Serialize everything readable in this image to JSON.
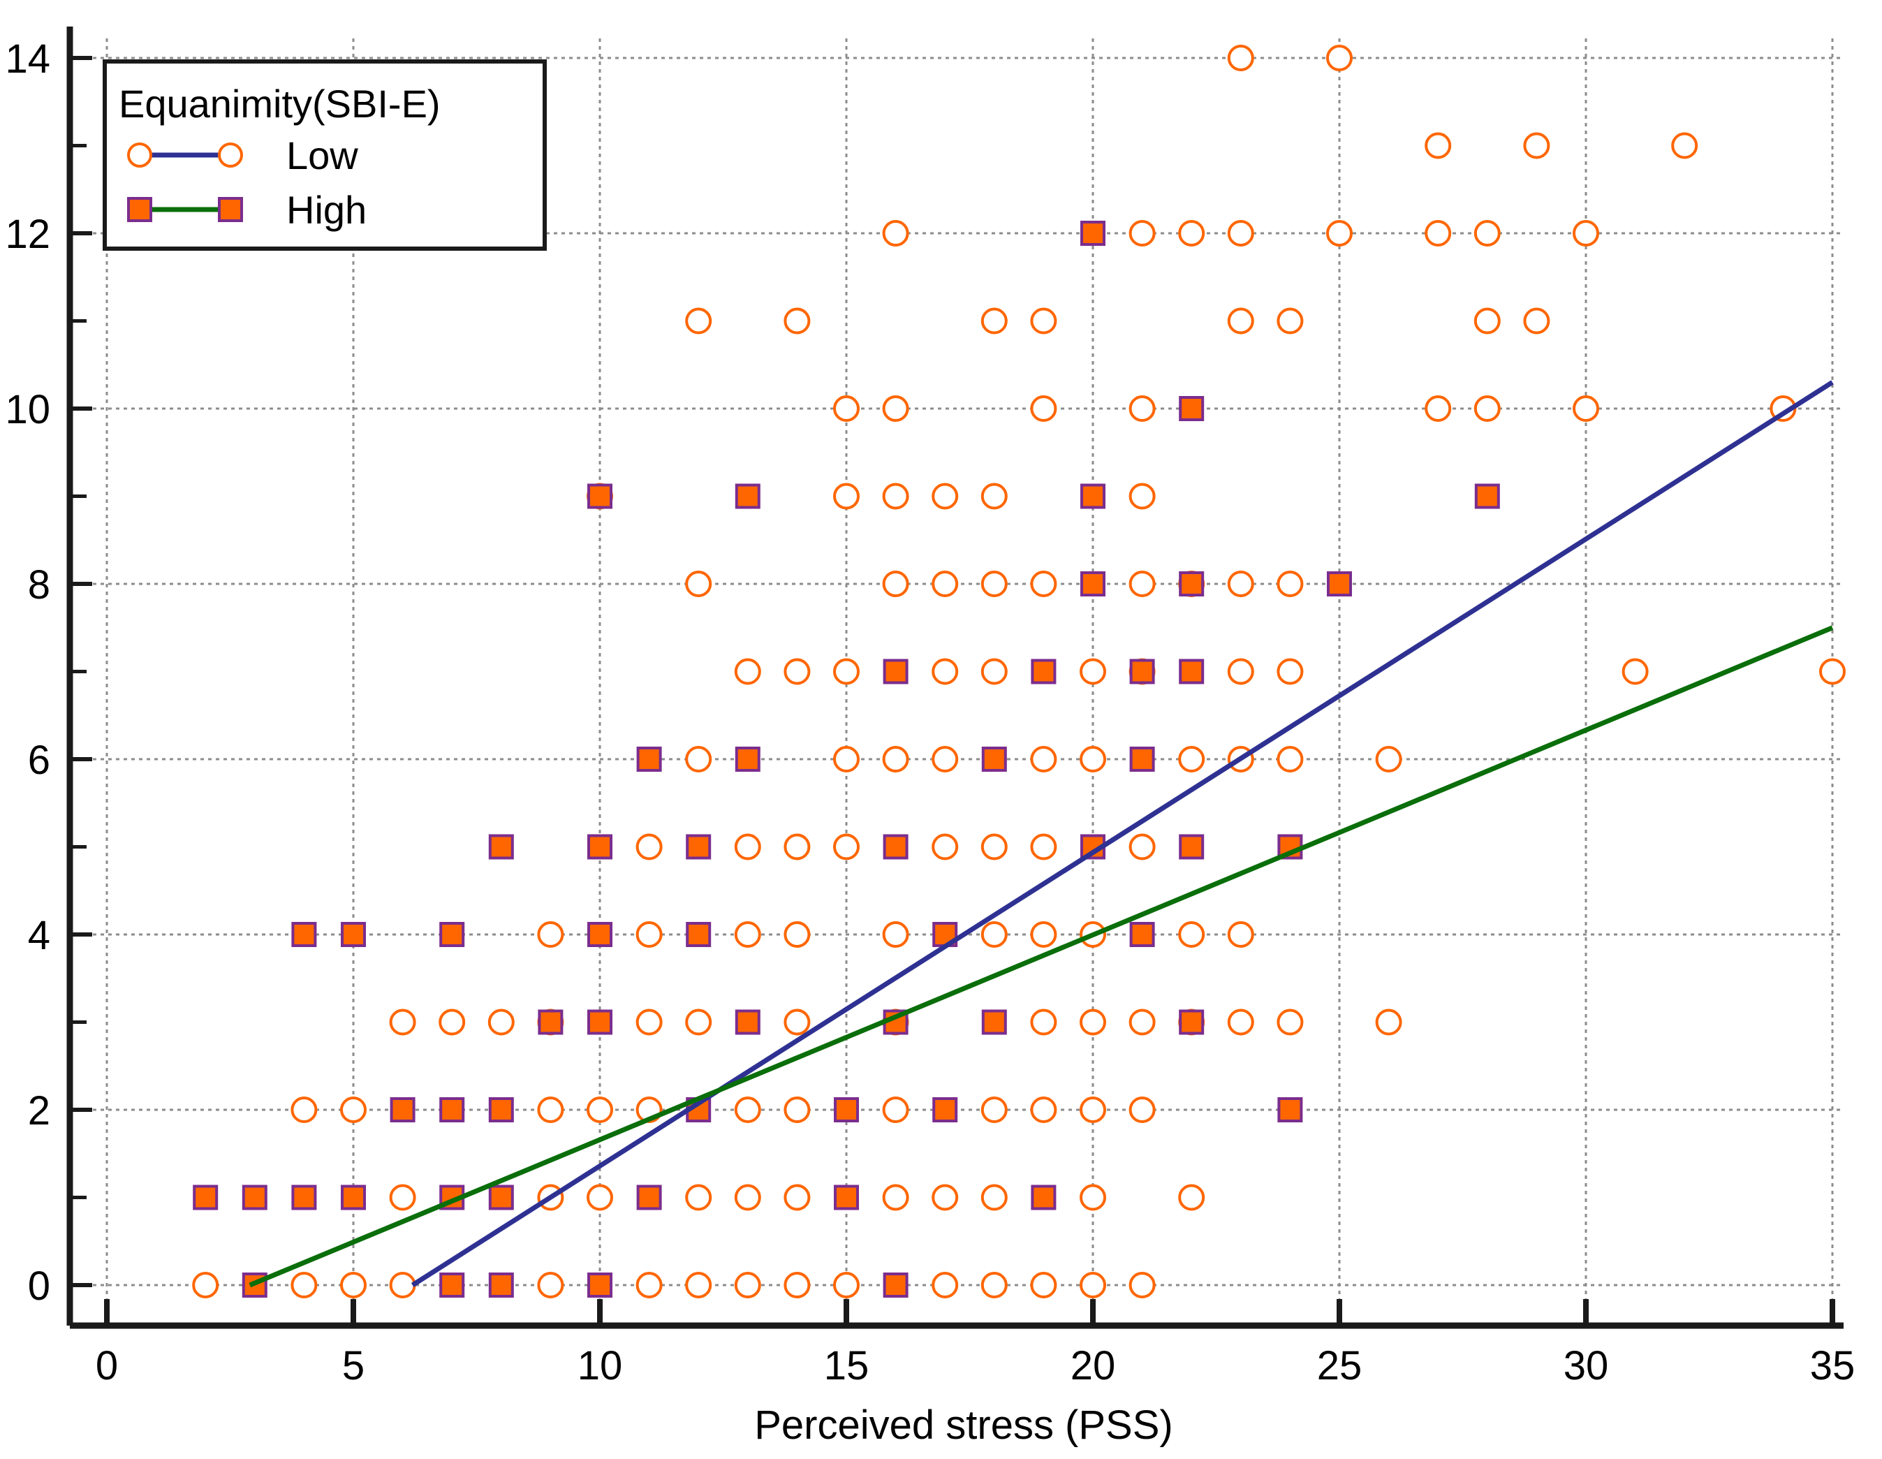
{
  "chart_data": {
    "type": "scatter",
    "title": "",
    "xlabel": "Perceived stress (PSS)",
    "ylabel": "",
    "xlim": [
      -0.5,
      35.2
    ],
    "ylim": [
      -0.45,
      14.3
    ],
    "xticks": [
      0,
      5,
      10,
      15,
      20,
      25,
      30,
      35
    ],
    "xtick_labels": [
      "0",
      "5",
      "10",
      "15",
      "20",
      "25",
      "30",
      "35"
    ],
    "yticks": [
      0,
      2,
      4,
      6,
      8,
      10,
      12,
      14
    ],
    "ytick_labels": [
      "0",
      "2",
      "4",
      "6",
      "8",
      "10",
      "12",
      "14"
    ],
    "grid": true,
    "legend": {
      "title": "Equanimity(SBI-E)",
      "position": "top-left",
      "entries": [
        "Low",
        "High"
      ]
    },
    "colors": {
      "marker_orange": "#ff6600",
      "square_edge": "#7b2d8e",
      "low_line": "#2e3192",
      "high_line": "#0a6e0a",
      "grid": "#8c8c8c",
      "axis": "#1a1a1a"
    },
    "series": [
      {
        "name": "Low",
        "marker": "circle",
        "fit_line": {
          "x": [
            6.2,
            35
          ],
          "y": [
            0,
            10.3
          ]
        },
        "points": [
          [
            23,
            14
          ],
          [
            25,
            14
          ],
          [
            27,
            13
          ],
          [
            29,
            13
          ],
          [
            32,
            13
          ],
          [
            16,
            12
          ],
          [
            21,
            12
          ],
          [
            22,
            12
          ],
          [
            23,
            12
          ],
          [
            25,
            12
          ],
          [
            27,
            12
          ],
          [
            28,
            12
          ],
          [
            30,
            12
          ],
          [
            12,
            11
          ],
          [
            14,
            11
          ],
          [
            18,
            11
          ],
          [
            19,
            11
          ],
          [
            23,
            11
          ],
          [
            24,
            11
          ],
          [
            28,
            11
          ],
          [
            29,
            11
          ],
          [
            15,
            10
          ],
          [
            16,
            10
          ],
          [
            19,
            10
          ],
          [
            21,
            10
          ],
          [
            27,
            10
          ],
          [
            28,
            10
          ],
          [
            30,
            10
          ],
          [
            34,
            10
          ],
          [
            10,
            9
          ],
          [
            15,
            9
          ],
          [
            16,
            9
          ],
          [
            17,
            9
          ],
          [
            18,
            9
          ],
          [
            21,
            9
          ],
          [
            12,
            8
          ],
          [
            16,
            8
          ],
          [
            17,
            8
          ],
          [
            18,
            8
          ],
          [
            19,
            8
          ],
          [
            21,
            8
          ],
          [
            22,
            8
          ],
          [
            23,
            8
          ],
          [
            24,
            8
          ],
          [
            13,
            7
          ],
          [
            14,
            7
          ],
          [
            15,
            7
          ],
          [
            17,
            7
          ],
          [
            18,
            7
          ],
          [
            20,
            7
          ],
          [
            21,
            7
          ],
          [
            23,
            7
          ],
          [
            24,
            7
          ],
          [
            31,
            7
          ],
          [
            35,
            7
          ],
          [
            12,
            6
          ],
          [
            15,
            6
          ],
          [
            16,
            6
          ],
          [
            17,
            6
          ],
          [
            19,
            6
          ],
          [
            20,
            6
          ],
          [
            22,
            6
          ],
          [
            23,
            6
          ],
          [
            24,
            6
          ],
          [
            26,
            6
          ],
          [
            11,
            5
          ],
          [
            13,
            5
          ],
          [
            14,
            5
          ],
          [
            15,
            5
          ],
          [
            17,
            5
          ],
          [
            18,
            5
          ],
          [
            19,
            5
          ],
          [
            21,
            5
          ],
          [
            9,
            4
          ],
          [
            11,
            4
          ],
          [
            13,
            4
          ],
          [
            14,
            4
          ],
          [
            16,
            4
          ],
          [
            18,
            4
          ],
          [
            19,
            4
          ],
          [
            20,
            4
          ],
          [
            22,
            4
          ],
          [
            23,
            4
          ],
          [
            6,
            3
          ],
          [
            7,
            3
          ],
          [
            8,
            3
          ],
          [
            9,
            3
          ],
          [
            11,
            3
          ],
          [
            12,
            3
          ],
          [
            14,
            3
          ],
          [
            16,
            3
          ],
          [
            19,
            3
          ],
          [
            20,
            3
          ],
          [
            21,
            3
          ],
          [
            22,
            3
          ],
          [
            23,
            3
          ],
          [
            24,
            3
          ],
          [
            26,
            3
          ],
          [
            4,
            2
          ],
          [
            5,
            2
          ],
          [
            9,
            2
          ],
          [
            10,
            2
          ],
          [
            11,
            2
          ],
          [
            13,
            2
          ],
          [
            14,
            2
          ],
          [
            16,
            2
          ],
          [
            18,
            2
          ],
          [
            19,
            2
          ],
          [
            20,
            2
          ],
          [
            21,
            2
          ],
          [
            6,
            1
          ],
          [
            9,
            1
          ],
          [
            10,
            1
          ],
          [
            12,
            1
          ],
          [
            13,
            1
          ],
          [
            14,
            1
          ],
          [
            16,
            1
          ],
          [
            17,
            1
          ],
          [
            18,
            1
          ],
          [
            20,
            1
          ],
          [
            22,
            1
          ],
          [
            2,
            0
          ],
          [
            4,
            0
          ],
          [
            5,
            0
          ],
          [
            6,
            0
          ],
          [
            9,
            0
          ],
          [
            11,
            0
          ],
          [
            12,
            0
          ],
          [
            13,
            0
          ],
          [
            14,
            0
          ],
          [
            15,
            0
          ],
          [
            17,
            0
          ],
          [
            18,
            0
          ],
          [
            19,
            0
          ],
          [
            20,
            0
          ],
          [
            21,
            0
          ]
        ]
      },
      {
        "name": "High",
        "marker": "square",
        "fit_line": {
          "x": [
            2.9,
            35
          ],
          "y": [
            0,
            7.5
          ]
        },
        "points": [
          [
            20,
            12
          ],
          [
            22,
            10
          ],
          [
            10,
            9
          ],
          [
            13,
            9
          ],
          [
            20,
            9
          ],
          [
            28,
            9
          ],
          [
            20,
            8
          ],
          [
            22,
            8
          ],
          [
            25,
            8
          ],
          [
            16,
            7
          ],
          [
            19,
            7
          ],
          [
            21,
            7
          ],
          [
            22,
            7
          ],
          [
            11,
            6
          ],
          [
            13,
            6
          ],
          [
            18,
            6
          ],
          [
            21,
            6
          ],
          [
            8,
            5
          ],
          [
            10,
            5
          ],
          [
            12,
            5
          ],
          [
            16,
            5
          ],
          [
            20,
            5
          ],
          [
            22,
            5
          ],
          [
            24,
            5
          ],
          [
            4,
            4
          ],
          [
            5,
            4
          ],
          [
            7,
            4
          ],
          [
            10,
            4
          ],
          [
            12,
            4
          ],
          [
            17,
            4
          ],
          [
            21,
            4
          ],
          [
            9,
            3
          ],
          [
            10,
            3
          ],
          [
            13,
            3
          ],
          [
            16,
            3
          ],
          [
            18,
            3
          ],
          [
            22,
            3
          ],
          [
            6,
            2
          ],
          [
            7,
            2
          ],
          [
            8,
            2
          ],
          [
            12,
            2
          ],
          [
            15,
            2
          ],
          [
            17,
            2
          ],
          [
            24,
            2
          ],
          [
            2,
            1
          ],
          [
            3,
            1
          ],
          [
            4,
            1
          ],
          [
            5,
            1
          ],
          [
            7,
            1
          ],
          [
            8,
            1
          ],
          [
            11,
            1
          ],
          [
            15,
            1
          ],
          [
            19,
            1
          ],
          [
            3,
            0
          ],
          [
            7,
            0
          ],
          [
            8,
            0
          ],
          [
            10,
            0
          ],
          [
            16,
            0
          ]
        ]
      }
    ]
  }
}
